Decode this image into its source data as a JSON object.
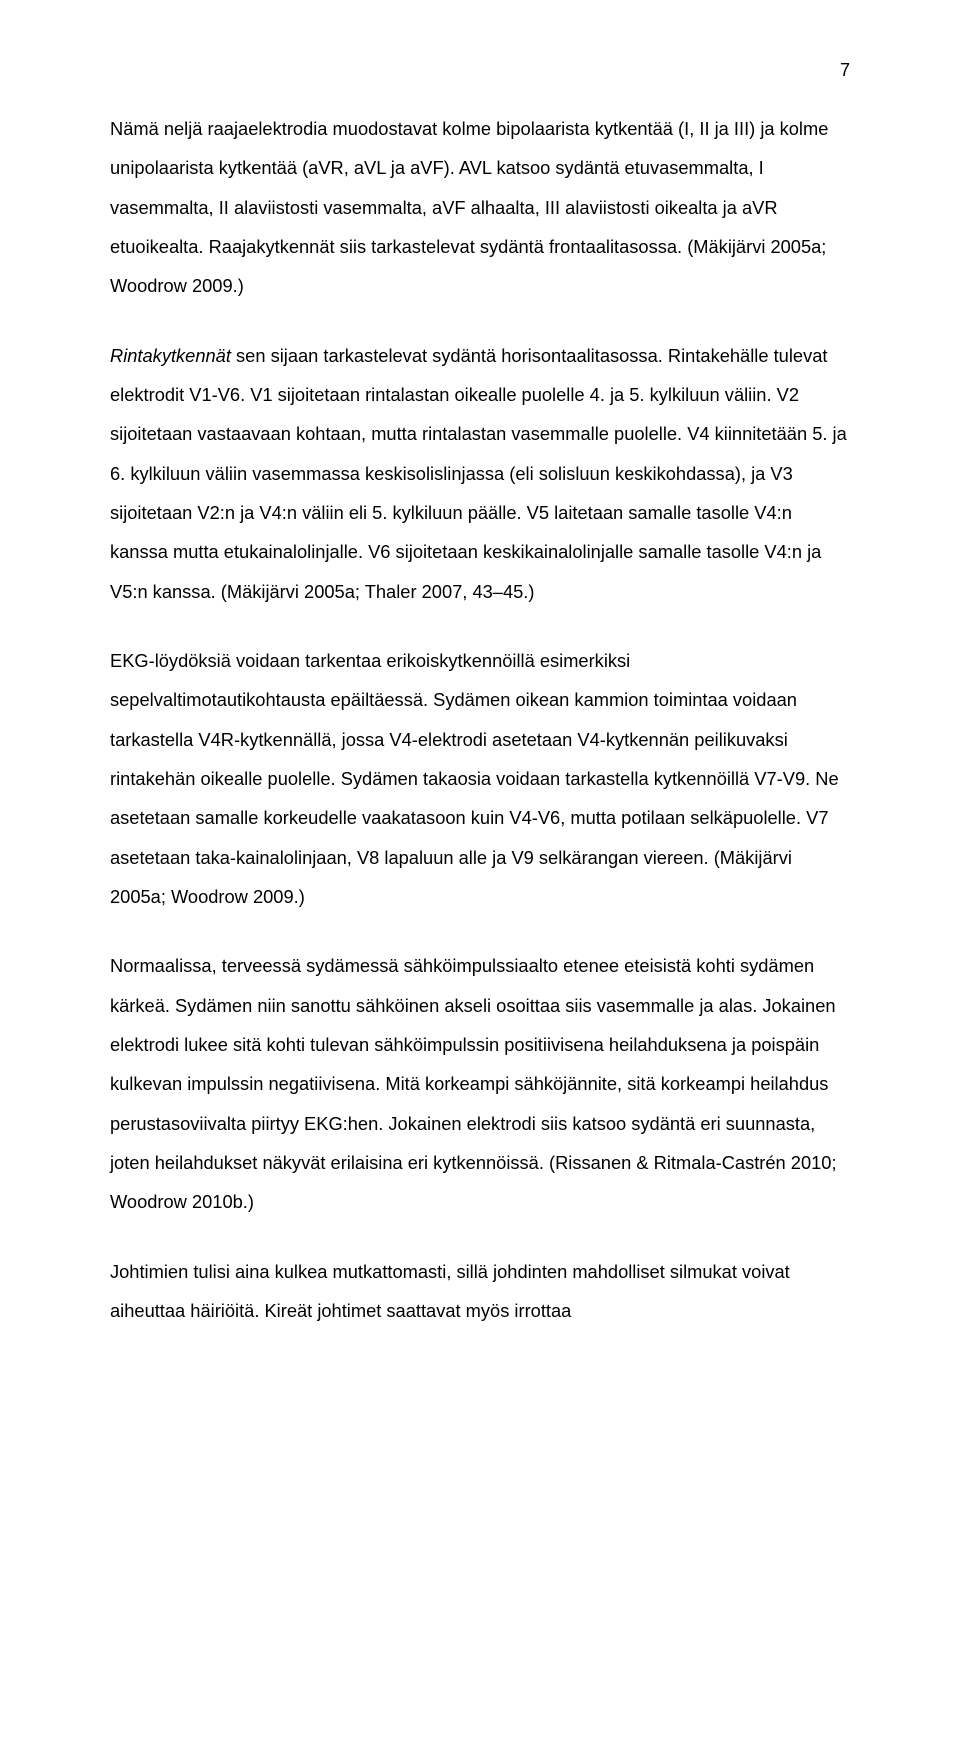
{
  "page_number": "7",
  "paragraphs": {
    "p1_part1": "Nämä neljä raajaelektrodia muodostavat kolme bipolaarista kytkentää (I, II ja III) ja kolme unipolaarista kytkentää (aVR, aVL ja aVF). AVL katsoo sydäntä etuvasemmalta, I vasemmalta, II alaviistosti vasemmalta, aVF alhaalta, III alaviistosti oikealta ja aVR etuoikealta. Raajakytkennät siis tarkastelevat sydäntä frontaalitasossa. (Mäkijärvi 2005a; Woodrow 2009.)",
    "p2_italic": "Rintakytkennät",
    "p2_rest": " sen sijaan tarkastelevat sydäntä horisontaalitasossa. Rintakehälle tulevat elektrodit V1-V6. V1 sijoitetaan rintalastan oikealle puolelle 4. ja 5. kylkiluun väliin. V2 sijoitetaan vastaavaan kohtaan, mutta rintalastan vasemmalle puolelle. V4 kiinnitetään 5. ja 6. kylkiluun väliin vasemmassa keskisolislinjassa (eli solisluun keskikohdassa), ja V3 sijoitetaan V2:n ja V4:n väliin eli 5. kylkiluun päälle. V5 laitetaan samalle tasolle V4:n kanssa mutta etukainalolinjalle. V6 sijoitetaan keskikainalolinjalle samalle tasolle V4:n ja V5:n kanssa. (Mäkijärvi 2005a; Thaler 2007, 43–45.)",
    "p3": "EKG-löydöksiä voidaan tarkentaa erikoiskytkennöillä esimerkiksi sepelvaltimotautikohtausta epäiltäessä. Sydämen oikean kammion toimintaa voidaan tarkastella V4R-kytkennällä, jossa V4-elektrodi asetetaan V4-kytkennän peilikuvaksi rintakehän oikealle puolelle. Sydämen takaosia voidaan tarkastella kytkennöillä V7-V9. Ne asetetaan samalle korkeudelle vaakatasoon kuin V4-V6, mutta potilaan selkäpuolelle. V7 asetetaan taka-kainalolinjaan, V8 lapaluun alle ja V9 selkärangan viereen. (Mäkijärvi 2005a; Woodrow 2009.)",
    "p4": "Normaalissa, terveessä sydämessä sähköimpulssiaalto etenee eteisistä kohti sydämen kärkeä. Sydämen niin sanottu sähköinen akseli osoittaa siis vasemmalle ja alas. Jokainen elektrodi lukee sitä kohti tulevan sähköimpulssin positiivisena heilahduksena ja poispäin kulkevan impulssin negatiivisena. Mitä korkeampi sähköjännite, sitä korkeampi heilahdus perustasoviivalta piirtyy EKG:hen. Jokainen elektrodi siis katsoo sydäntä eri suunnasta, joten heilahdukset näkyvät erilaisina eri kytkennöissä. (Rissanen & Ritmala-Castrén 2010; Woodrow 2010b.)",
    "p5": "Johtimien tulisi aina kulkea mutkattomasti, sillä johdinten mahdolliset silmukat voivat aiheuttaa häiriöitä. Kireät johtimet saattavat myös irrottaa"
  },
  "colors": {
    "text": "#000000",
    "background": "#ffffff"
  },
  "typography": {
    "body_fontsize": 18.3,
    "line_height": 2.15,
    "font_family": "Arial"
  }
}
